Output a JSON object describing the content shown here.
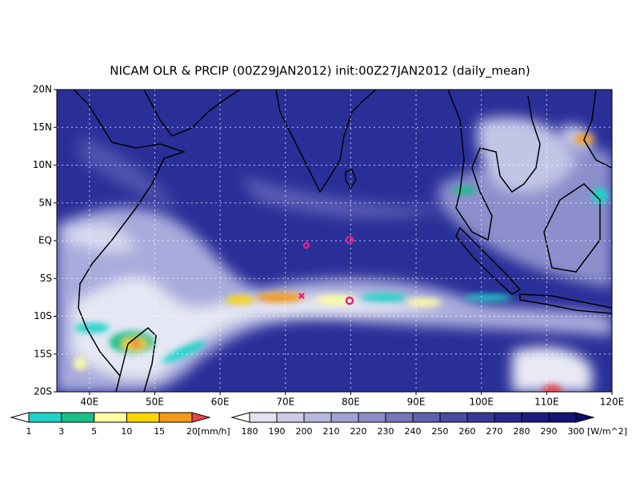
{
  "title": "NICAM OLR & PRCIP (00Z29JAN2012) init:00Z27JAN2012 (daily_mean)",
  "map": {
    "lat_labels": [
      "20N",
      "15N",
      "10N",
      "5N",
      "EQ",
      "5S",
      "10S",
      "15S",
      "20S"
    ],
    "lon_labels": [
      "40E",
      "50E",
      "60E",
      "70E",
      "80E",
      "90E",
      "100E",
      "110E",
      "120E"
    ]
  },
  "precip_legend": {
    "levels": [
      1,
      3,
      5,
      10,
      15,
      20
    ],
    "unit": "[mm/h]",
    "colors": [
      "#ffffff",
      "#1fd3c8",
      "#19c088",
      "#ffffa0",
      "#f8d800",
      "#f39a1a",
      "#e84848"
    ]
  },
  "olr_legend": {
    "levels": [
      180,
      190,
      200,
      210,
      220,
      230,
      240,
      250,
      260,
      270,
      280,
      290,
      300
    ],
    "unit": "[W/m^2]",
    "colors": [
      "#ffffff",
      "#e2e2f0",
      "#cdcde6",
      "#b8b8dc",
      "#a2a2d2",
      "#8c8cc6",
      "#7676ba",
      "#6060ae",
      "#4a4aa2",
      "#383898",
      "#28288c",
      "#1c1c80",
      "#141474",
      "#0c0c68"
    ]
  }
}
